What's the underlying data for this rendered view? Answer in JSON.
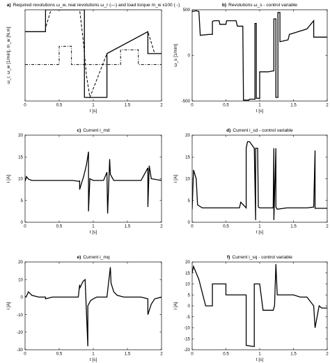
{
  "chart_data": [
    {
      "type": "line",
      "panel_label": "a)",
      "title": "Required revolutions ω_w, real revolutions ω_r (—) and load torque m_w x100 (·-)",
      "xlabel": "t [s]",
      "ylabel": "ω_r, ω_w [1/min], m_w [N.m]",
      "xlim": [
        0,
        2
      ],
      "ylim": [
        -1000,
        1500
      ],
      "xticks": [
        0,
        0.5,
        1,
        1.5,
        2
      ],
      "yticks": [],
      "series": [
        {
          "style": "solid",
          "x": [
            0,
            0.3,
            0.3,
            0.8,
            0.8,
            0.87,
            0.87,
            1.2,
            1.2,
            1.8,
            1.8,
            2.0
          ],
          "y": [
            900,
            900,
            1500,
            1500,
            1500,
            1500,
            -900,
            -900,
            300,
            900,
            300,
            300
          ]
        },
        {
          "style": "dash",
          "x": [
            0,
            0.3,
            0.3,
            0.38,
            0.8,
            0.85,
            0.9,
            0.95,
            1.2,
            1.8,
            1.9,
            2.0
          ],
          "y": [
            900,
            900,
            1000,
            1500,
            1500,
            700,
            -300,
            -900,
            300,
            900,
            300,
            300
          ]
        },
        {
          "style": "dashdot",
          "x": [
            0,
            0.5,
            0.5,
            0.68,
            0.68,
            1.4,
            1.4,
            1.66,
            1.66,
            2.0
          ],
          "y": [
            0,
            0,
            500,
            500,
            0,
            0,
            400,
            400,
            0,
            0
          ]
        }
      ]
    },
    {
      "type": "line",
      "panel_label": "b)",
      "title": "Revolutions ω_s - control variable",
      "xlabel": "t [s]",
      "ylabel": "ω_s [1/min]",
      "xlim": [
        0,
        2
      ],
      "ylim": [
        -500,
        500
      ],
      "xticks": [
        0,
        0.5,
        1,
        1.5,
        2
      ],
      "yticks": [
        -500,
        0,
        500
      ],
      "series": [
        {
          "style": "solid",
          "x": [
            0,
            0.06,
            0.1,
            0.12,
            0.25,
            0.3,
            0.3,
            0.32,
            0.4,
            0.41,
            0.5,
            0.51,
            0.65,
            0.67,
            0.75,
            0.76,
            0.84,
            0.85,
            0.93,
            0.93,
            0.95,
            0.95,
            1.0,
            1.0,
            1.12,
            1.2,
            1.21,
            1.21,
            1.24,
            1.24,
            1.27,
            1.27,
            1.3,
            1.3,
            1.42,
            1.44,
            1.7,
            1.8,
            1.8,
            1.9,
            2.0
          ],
          "y": [
            480,
            490,
            480,
            220,
            230,
            230,
            370,
            380,
            380,
            340,
            340,
            380,
            380,
            320,
            320,
            -490,
            -490,
            -480,
            -480,
            350,
            350,
            -470,
            -470,
            -180,
            -180,
            -170,
            -170,
            400,
            400,
            -460,
            -460,
            470,
            470,
            150,
            170,
            230,
            290,
            380,
            200,
            200,
            200
          ]
        }
      ]
    },
    {
      "type": "line",
      "panel_label": "c)",
      "title": "Current i_md",
      "xlabel": "t [s]",
      "ylabel": "i [A]",
      "xlim": [
        0,
        2
      ],
      "ylim": [
        0,
        20
      ],
      "xticks": [
        0,
        0.5,
        1,
        1.5,
        2
      ],
      "yticks": [
        0,
        5,
        10,
        15,
        20
      ],
      "series": [
        {
          "style": "solid",
          "x": [
            0,
            0.02,
            0.05,
            0.1,
            0.7,
            0.79,
            0.8,
            0.8,
            0.82,
            0.86,
            0.9,
            0.93,
            0.93,
            0.95,
            1.0,
            1.15,
            1.2,
            1.21,
            1.24,
            1.25,
            1.3,
            1.4,
            1.7,
            1.8,
            1.8,
            1.82,
            1.85,
            2.0
          ],
          "y": [
            9.4,
            10.5,
            9.9,
            9.6,
            9.6,
            9.4,
            9.5,
            7.5,
            8.6,
            10.6,
            13.2,
            16.2,
            2.5,
            10,
            9.6,
            9.6,
            11.5,
            2,
            14.5,
            11,
            9.6,
            9.6,
            9.6,
            12.5,
            3.5,
            13,
            10,
            9.6
          ]
        }
      ]
    },
    {
      "type": "line",
      "panel_label": "d)",
      "title": "Current i_sd - control variable",
      "xlabel": "t [s]",
      "ylabel": "i [A]",
      "xlim": [
        0,
        2
      ],
      "ylim": [
        0,
        20
      ],
      "xticks": [
        0,
        0.5,
        1,
        1.5,
        2
      ],
      "yticks": [
        0,
        5,
        10,
        15,
        20
      ],
      "series": [
        {
          "style": "solid",
          "x": [
            0,
            0.02,
            0.06,
            0.08,
            0.15,
            0.6,
            0.7,
            0.72,
            0.8,
            0.8,
            0.82,
            0.85,
            0.92,
            0.94,
            0.94,
            0.97,
            0.98,
            0.98,
            1.0,
            1.2,
            1.21,
            1.21,
            1.24,
            1.24,
            1.26,
            1.4,
            1.5,
            1.7,
            1.8,
            1.82,
            1.82,
            2.0
          ],
          "y": [
            3,
            12,
            10,
            4,
            3.3,
            3.3,
            3.3,
            4.6,
            3.3,
            17,
            18.5,
            18.5,
            17,
            0.5,
            17,
            17,
            3.5,
            3.5,
            3.3,
            3.3,
            17,
            0.5,
            17,
            3.5,
            3,
            3.3,
            3.3,
            3.3,
            3.5,
            16.5,
            3.2,
            3.2
          ]
        }
      ]
    },
    {
      "type": "line",
      "panel_label": "e)",
      "title": "Current i_mq",
      "xlabel": "t [s]",
      "ylabel": "i [A]",
      "xlim": [
        0,
        2
      ],
      "ylim": [
        -30,
        20
      ],
      "xticks": [
        0,
        0.5,
        1,
        1.5,
        2
      ],
      "yticks": [
        -30,
        -20,
        -10,
        0,
        10,
        20
      ],
      "series": [
        {
          "style": "solid",
          "x": [
            0,
            0.02,
            0.05,
            0.1,
            0.2,
            0.3,
            0.3,
            0.4,
            0.5,
            0.6,
            0.78,
            0.8,
            0.8,
            0.85,
            0.88,
            0.92,
            0.92,
            0.96,
            1.0,
            1.05,
            1.2,
            1.25,
            1.26,
            1.3,
            1.35,
            1.45,
            1.7,
            1.8,
            1.8,
            1.85,
            1.9,
            2.0
          ],
          "y": [
            0,
            0.5,
            3,
            1,
            0,
            0,
            -1,
            0,
            0,
            0,
            0,
            7,
            5,
            9,
            10,
            -28,
            -5,
            -2,
            -1,
            0,
            0,
            17,
            8,
            3,
            1,
            0,
            0,
            -1,
            -10,
            -4,
            -1,
            0
          ]
        }
      ]
    },
    {
      "type": "line",
      "panel_label": "f)",
      "title": "Current i_sq - control variable",
      "xlabel": "t [s]",
      "ylabel": "i [A]",
      "xlim": [
        0,
        2
      ],
      "ylim": [
        -20,
        20
      ],
      "xticks": [
        0,
        0.5,
        1,
        1.5,
        2
      ],
      "yticks": [
        -20,
        -15,
        -10,
        -5,
        0,
        5,
        10,
        15,
        20
      ],
      "series": [
        {
          "style": "solid",
          "x": [
            0,
            0.02,
            0.1,
            0.2,
            0.3,
            0.3,
            0.33,
            0.45,
            0.5,
            0.5,
            0.65,
            0.72,
            0.8,
            0.8,
            0.9,
            0.92,
            0.92,
            1.0,
            1.05,
            1.15,
            1.2,
            1.22,
            1.24,
            1.24,
            1.26,
            1.3,
            1.3,
            1.5,
            1.6,
            1.65,
            1.7,
            1.8,
            1.82,
            1.88,
            1.92,
            2.0
          ],
          "y": [
            15,
            18,
            12,
            0,
            0,
            10,
            10,
            10,
            10,
            5,
            5,
            5,
            5,
            -18,
            -18.5,
            -18.5,
            10,
            10,
            -2,
            -2,
            -2,
            0,
            19,
            19,
            5,
            5,
            5,
            5,
            4,
            4,
            4,
            0,
            -10,
            0,
            -1,
            -1
          ]
        }
      ]
    }
  ]
}
